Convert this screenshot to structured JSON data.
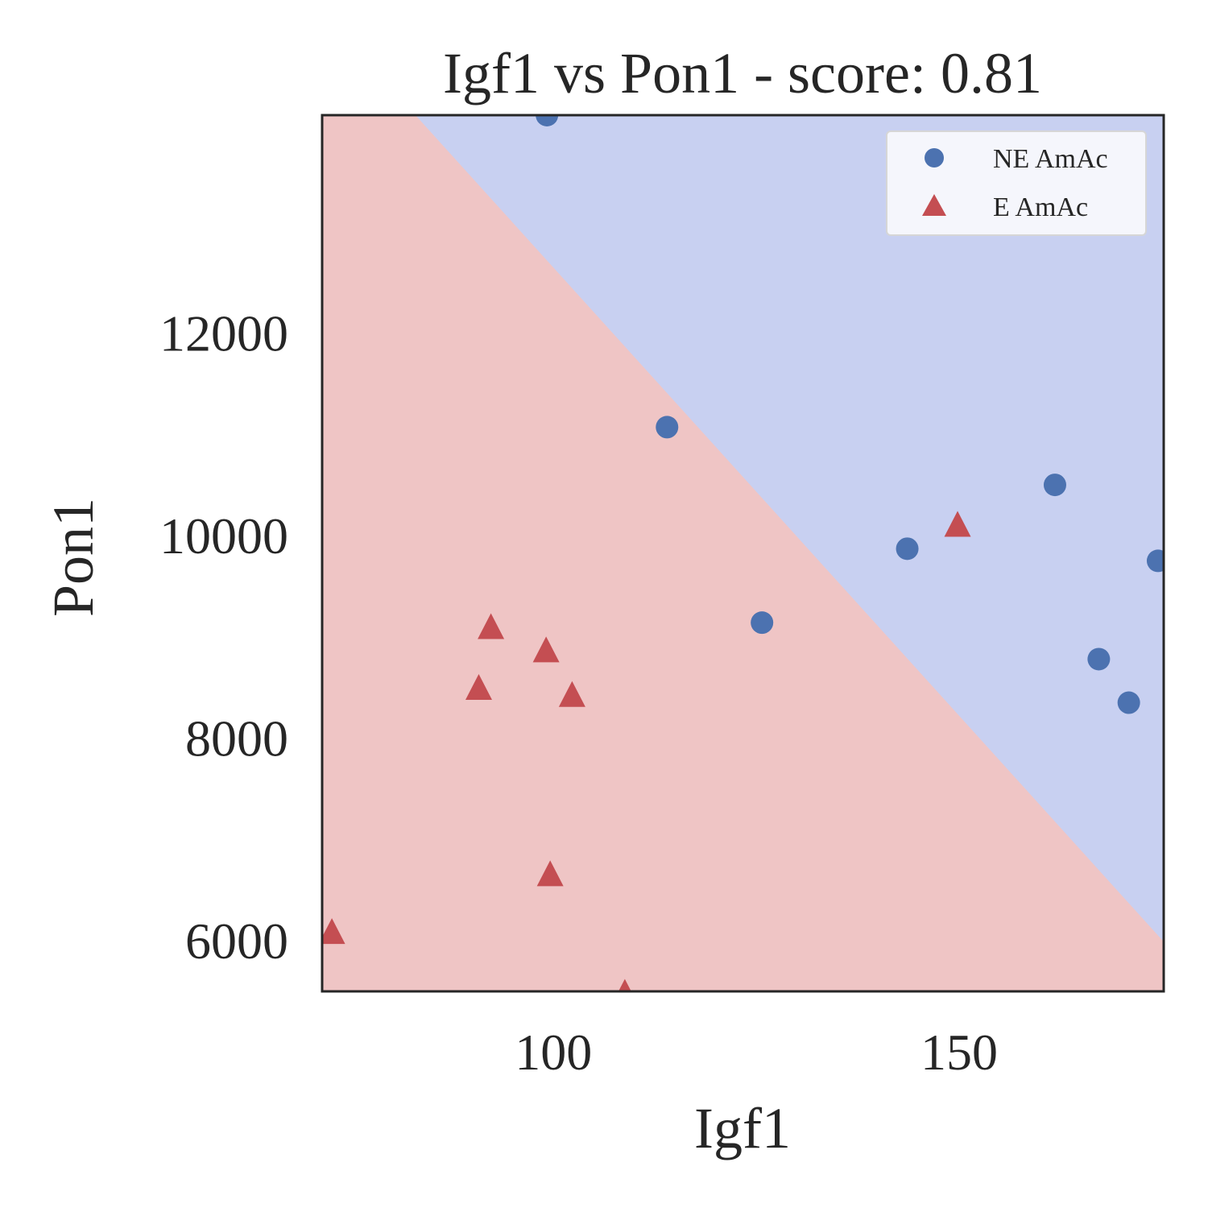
{
  "chart_data": {
    "type": "scatter",
    "title": "Igf1 vs Pon1 - score: 0.81",
    "xlabel": "Igf1",
    "ylabel": "Pon1",
    "xlim": [
      71.5,
      175.2
    ],
    "ylim": [
      5500,
      14150
    ],
    "xticks": [
      {
        "value": 100,
        "label": "100"
      },
      {
        "value": 150,
        "label": "150"
      }
    ],
    "yticks": [
      {
        "value": 6000,
        "label": "6000"
      },
      {
        "value": 8000,
        "label": "8000"
      },
      {
        "value": 10000,
        "label": "10000"
      },
      {
        "value": 12000,
        "label": "12000"
      }
    ],
    "grid": false,
    "legend_position": "top-right",
    "decision_boundary": {
      "points": [
        [
          83.0,
          14150
        ],
        [
          175.2,
          5990
        ]
      ],
      "region_above_color": "#c8d0f1",
      "region_below_color": "#efc5c5"
    },
    "series": [
      {
        "name": "NE AmAc",
        "marker": "circle",
        "color": "#4c72b0",
        "points": [
          [
            99.2,
            14150
          ],
          [
            114.0,
            11070
          ],
          [
            125.7,
            9140
          ],
          [
            143.6,
            9870
          ],
          [
            161.8,
            10500
          ],
          [
            167.2,
            8780
          ],
          [
            170.9,
            8350
          ],
          [
            174.5,
            9750
          ]
        ]
      },
      {
        "name": "E AmAc",
        "marker": "triangle",
        "color": "#c44e52",
        "points": [
          [
            72.7,
            6070
          ],
          [
            90.8,
            8480
          ],
          [
            92.3,
            9080
          ],
          [
            99.1,
            8850
          ],
          [
            99.6,
            6640
          ],
          [
            102.3,
            8410
          ],
          [
            108.8,
            5470
          ],
          [
            149.8,
            10090
          ]
        ]
      }
    ]
  }
}
